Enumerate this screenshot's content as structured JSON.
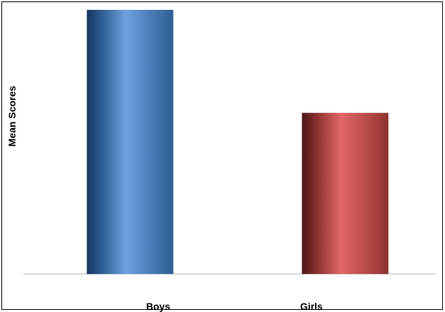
{
  "chart_data": {
    "type": "bar",
    "title": "",
    "xlabel": "",
    "ylabel": "Mean Scores",
    "categories": [
      "Boys",
      "Girls"
    ],
    "values": [
      100,
      61
    ],
    "ylim": [
      0,
      100
    ],
    "grid": false,
    "legend": "none",
    "colors": [
      "#4f81bd",
      "#c0504d"
    ]
  }
}
